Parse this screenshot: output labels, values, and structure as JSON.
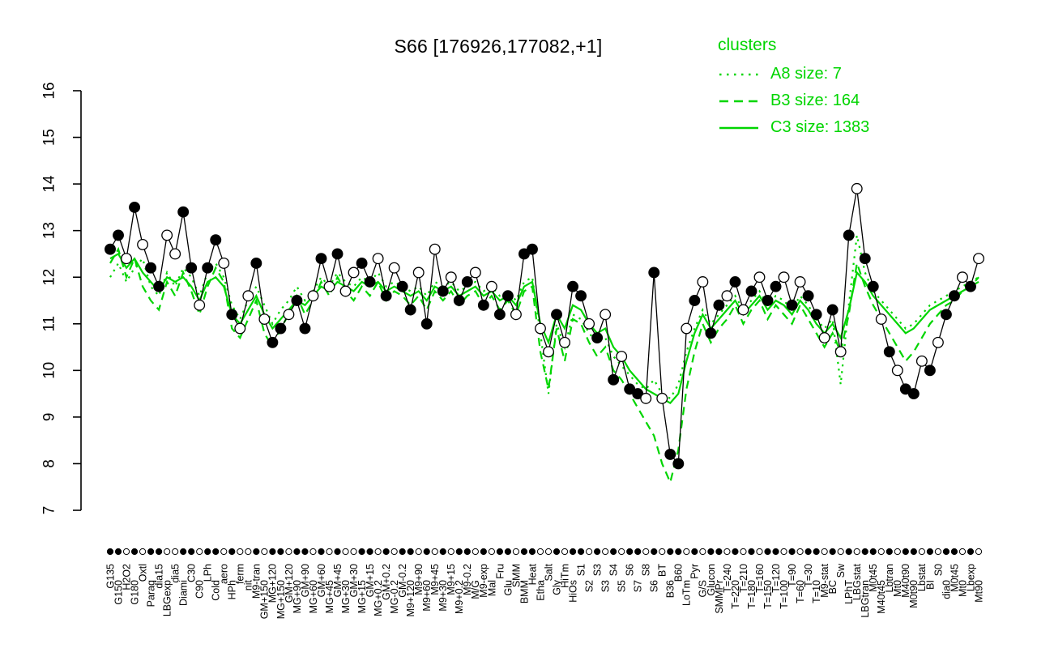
{
  "title": "S66 [176926,177082,+1]",
  "colors": {
    "cluster": "#00d500",
    "gene": "#000000",
    "background": "#ffffff"
  },
  "legend": {
    "title": "clusters",
    "entries": [
      {
        "label": "A8 size: 7",
        "style": "dotted"
      },
      {
        "label": "B3 size: 164",
        "style": "dashed"
      },
      {
        "label": "C3 size: 1383",
        "style": "solid"
      }
    ]
  },
  "chart_data": {
    "type": "line",
    "title": "S66 [176926,177082,+1]",
    "xlabel": "",
    "ylabel": "",
    "ylim": [
      7,
      16
    ],
    "yticks": [
      7,
      8,
      9,
      10,
      11,
      12,
      13,
      14,
      15,
      16
    ],
    "grid": false,
    "legend_position": "top-right",
    "categories": [
      "G135",
      "G150",
      "H2O2",
      "G180",
      "Oxtl",
      "Paraq",
      "dia15",
      "LBGexp",
      "dia5",
      "Diami",
      "C30",
      "C90",
      "LPh",
      "Cold",
      "aero",
      "HPh",
      "ferm",
      "nit",
      "M9-tran",
      "GM+150",
      "MG+120",
      "MG+150",
      "GM+120",
      "MG+90",
      "GM+90",
      "MG+60",
      "GM+60",
      "MG+45",
      "GM+45",
      "MG+30",
      "GM+30",
      "MG+15",
      "GM+15",
      "MG+0.2",
      "GM+0.2",
      "MG-0.2",
      "GM-0.2",
      "M9+120",
      "M9+90",
      "M9+60",
      "M9+45",
      "M9+30",
      "M9+15",
      "M9+0.2",
      "M9-0.2",
      "M/G",
      "M9-exp",
      "Mal",
      "Fru",
      "Glu",
      "SMM",
      "BMM",
      "Heat",
      "Etha",
      "Salt",
      "Gly",
      "HiTm",
      "HiOs",
      "S1",
      "S2",
      "S3",
      "S3",
      "S4",
      "S5",
      "S6",
      "S7",
      "S8",
      "S6",
      "BT",
      "B36",
      "B60",
      "LoTm",
      "Pyr",
      "G/S",
      "Glucon",
      "SMMPr",
      "T=240",
      "T=220",
      "T=210",
      "T=180",
      "T=160",
      "T=150",
      "T=120",
      "T=100",
      "T=90",
      "T=60",
      "T=30",
      "T=10",
      "M9-stat",
      "BC",
      "Sw",
      "LPhT",
      "LBGstat",
      "LBGtran",
      "M0t45",
      "M40t45",
      "Lbtran",
      "Mt0",
      "M40t90",
      "M0t90",
      "Lbstat",
      "BI",
      "S0",
      "dia0",
      "M0t45",
      "Mt0",
      "Lbexp",
      "Mt90"
    ],
    "point_filled": [
      1,
      1,
      0,
      1,
      0,
      1,
      1,
      0,
      0,
      1,
      1,
      0,
      1,
      1,
      0,
      1,
      0,
      0,
      1,
      0,
      1,
      1,
      0,
      1,
      1,
      0,
      1,
      0,
      1,
      0,
      0,
      1,
      1,
      0,
      1,
      0,
      1,
      1,
      0,
      1,
      0,
      1,
      0,
      1,
      1,
      0,
      1,
      0,
      1,
      1,
      0,
      1,
      1,
      0,
      0,
      1,
      0,
      1,
      1,
      0,
      1,
      0,
      1,
      0,
      1,
      1,
      0,
      1,
      0,
      1,
      1,
      0,
      1,
      0,
      1,
      1,
      0,
      1,
      0,
      1,
      0,
      1,
      1,
      0,
      1,
      0,
      1,
      1,
      0,
      1,
      0,
      1,
      0,
      1,
      1,
      0,
      1,
      0,
      1,
      1,
      0,
      1,
      0,
      1,
      1,
      0,
      1,
      0
    ],
    "series": [
      {
        "name": "gene S66",
        "color": "#000000",
        "style": "solid-markers",
        "values": [
          12.6,
          12.9,
          12.4,
          13.5,
          12.7,
          12.2,
          11.8,
          12.9,
          12.5,
          13.4,
          12.2,
          11.4,
          12.2,
          12.8,
          12.3,
          11.2,
          10.9,
          11.6,
          12.3,
          11.1,
          10.6,
          10.9,
          11.2,
          11.5,
          10.9,
          11.6,
          12.4,
          11.8,
          12.5,
          11.7,
          12.1,
          12.3,
          11.9,
          12.4,
          11.6,
          12.2,
          11.8,
          11.3,
          12.1,
          11.0,
          12.6,
          11.7,
          12.0,
          11.5,
          11.9,
          12.1,
          11.4,
          11.8,
          11.2,
          11.6,
          11.2,
          12.5,
          12.6,
          10.9,
          10.4,
          11.2,
          10.6,
          11.8,
          11.6,
          11.0,
          10.7,
          11.2,
          9.8,
          10.3,
          9.6,
          9.5,
          9.4,
          12.1,
          9.4,
          8.2,
          8.0,
          10.9,
          11.5,
          11.9,
          10.8,
          11.4,
          11.6,
          11.9,
          11.3,
          11.7,
          12.0,
          11.5,
          11.8,
          12.0,
          11.4,
          11.9,
          11.6,
          11.2,
          10.7,
          11.3,
          10.4,
          12.9,
          13.9,
          12.4,
          11.8,
          11.1,
          10.4,
          10.0,
          9.6,
          9.5,
          10.2,
          10.0,
          10.6,
          11.2,
          11.6,
          12.0,
          11.8,
          12.4
        ]
      },
      {
        "name": "A8",
        "style": "dotted",
        "values": [
          12.0,
          12.3,
          11.9,
          12.2,
          12.4,
          11.8,
          11.6,
          12.1,
          11.8,
          12.2,
          12.0,
          11.6,
          12.1,
          12.3,
          12.0,
          11.4,
          11.1,
          11.5,
          11.8,
          11.4,
          11.0,
          11.3,
          11.5,
          11.8,
          11.5,
          11.7,
          12.0,
          11.8,
          12.1,
          11.9,
          11.8,
          12.0,
          11.9,
          12.1,
          11.8,
          11.9,
          11.8,
          11.7,
          11.8,
          11.6,
          11.9,
          11.8,
          11.9,
          11.7,
          11.8,
          11.9,
          11.7,
          11.8,
          11.6,
          11.7,
          11.5,
          11.9,
          12.0,
          10.8,
          9.5,
          11.0,
          10.5,
          11.2,
          11.1,
          10.8,
          10.6,
          10.7,
          10.3,
          10.1,
          9.9,
          9.7,
          9.6,
          9.8,
          9.5,
          9.4,
          9.7,
          10.4,
          10.9,
          11.3,
          11.0,
          11.2,
          11.4,
          11.6,
          11.3,
          11.5,
          11.7,
          11.4,
          11.6,
          11.5,
          11.3,
          11.6,
          11.4,
          11.1,
          10.9,
          11.1,
          9.7,
          11.4,
          12.9,
          12.1,
          11.7,
          11.5,
          11.3,
          11.1,
          10.9,
          11.0,
          11.2,
          11.4,
          11.5,
          11.6,
          11.7,
          11.8,
          11.9,
          12.0
        ]
      },
      {
        "name": "B3",
        "style": "dashed",
        "values": [
          12.3,
          12.6,
          12.0,
          12.4,
          11.8,
          11.5,
          11.3,
          11.9,
          11.6,
          12.1,
          11.7,
          11.2,
          11.8,
          12.2,
          11.9,
          10.9,
          10.7,
          11.1,
          11.5,
          10.8,
          10.5,
          10.9,
          11.2,
          11.6,
          11.2,
          11.5,
          11.9,
          11.6,
          12.0,
          11.7,
          11.5,
          11.8,
          11.6,
          11.9,
          11.5,
          11.7,
          11.6,
          11.4,
          11.6,
          11.3,
          11.7,
          11.5,
          11.7,
          11.4,
          11.6,
          11.7,
          11.4,
          11.6,
          11.3,
          11.5,
          11.2,
          11.7,
          11.8,
          10.4,
          9.6,
          10.9,
          10.2,
          11.1,
          11.0,
          10.6,
          10.3,
          10.5,
          10.0,
          9.8,
          9.5,
          9.2,
          8.9,
          8.6,
          8.0,
          7.6,
          8.3,
          9.6,
          10.4,
          11.0,
          10.6,
          10.9,
          11.1,
          11.4,
          11.0,
          11.3,
          11.5,
          11.1,
          11.4,
          11.2,
          11.0,
          11.4,
          11.1,
          10.8,
          10.5,
          10.8,
          10.4,
          11.2,
          12.3,
          11.8,
          11.4,
          11.1,
          10.8,
          10.5,
          10.2,
          10.4,
          10.7,
          11.0,
          11.2,
          11.4,
          11.5,
          11.7,
          11.8,
          12.0
        ]
      },
      {
        "name": "C3",
        "style": "solid",
        "values": [
          12.4,
          12.5,
          12.2,
          12.4,
          12.1,
          11.9,
          11.7,
          12.0,
          11.9,
          12.0,
          11.8,
          11.5,
          11.9,
          12.0,
          11.8,
          11.2,
          11.0,
          11.3,
          11.6,
          11.2,
          10.9,
          11.1,
          11.3,
          11.5,
          11.4,
          11.6,
          11.8,
          11.7,
          11.9,
          11.8,
          11.7,
          11.9,
          11.8,
          11.9,
          11.7,
          11.8,
          11.7,
          11.6,
          11.7,
          11.5,
          11.8,
          11.7,
          11.8,
          11.6,
          11.7,
          11.8,
          11.6,
          11.7,
          11.5,
          11.6,
          11.4,
          11.8,
          11.9,
          11.0,
          10.6,
          11.2,
          10.9,
          11.4,
          11.3,
          11.0,
          10.8,
          10.9,
          10.5,
          10.3,
          10.0,
          9.8,
          9.6,
          9.5,
          9.4,
          9.3,
          9.5,
          10.2,
          10.8,
          11.2,
          10.9,
          11.1,
          11.3,
          11.5,
          11.2,
          11.4,
          11.6,
          11.3,
          11.5,
          11.4,
          11.2,
          11.5,
          11.3,
          11.0,
          10.8,
          11.0,
          10.7,
          11.3,
          12.1,
          11.9,
          11.6,
          11.4,
          11.2,
          11.0,
          10.8,
          10.9,
          11.1,
          11.3,
          11.4,
          11.5,
          11.6,
          11.7,
          11.8,
          11.9
        ]
      }
    ]
  }
}
